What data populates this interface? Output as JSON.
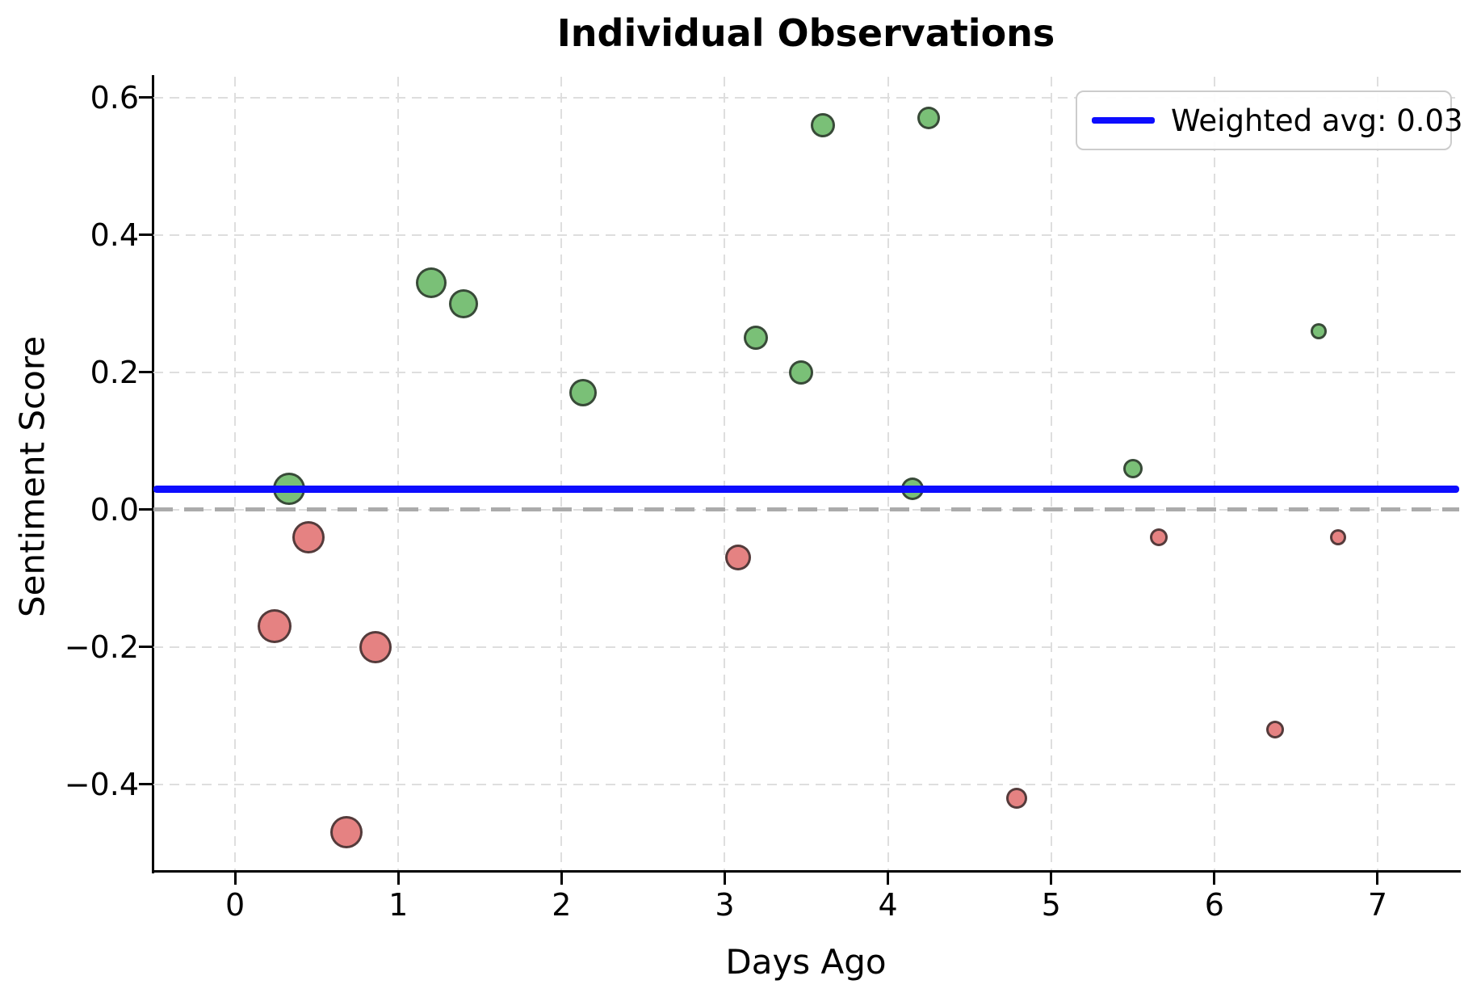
{
  "title": "Individual Observations",
  "axes": {
    "x": {
      "label": "Days Ago",
      "tick_labels": [
        "0",
        "1",
        "2",
        "3",
        "4",
        "5",
        "6",
        "7"
      ],
      "tick_values": [
        0,
        1,
        2,
        3,
        4,
        5,
        6,
        7
      ]
    },
    "y": {
      "label": "Sentiment Score",
      "tick_labels": [
        "0.6",
        "0.4",
        "0.2",
        "0.0",
        "−0.2",
        "−0.4"
      ],
      "tick_values": [
        0.6,
        0.4,
        0.2,
        0.0,
        -0.2,
        -0.4
      ]
    }
  },
  "legend": {
    "label": "Weighted avg: 0.03"
  },
  "colors": {
    "positive": "#7ac077",
    "negative": "#e58282",
    "avg_line": "#0d0dff",
    "zero_line": "#ababab",
    "grid": "#dedede",
    "point_edge": "rgba(35,35,35,0.75)",
    "legend_border": "#cccccc",
    "text": "#000000"
  },
  "chart_data": {
    "type": "scatter",
    "title": "Individual Observations",
    "xlabel": "Days Ago",
    "ylabel": "Sentiment Score",
    "xlim": [
      -0.5,
      7.5
    ],
    "ylim": [
      -0.525,
      0.63
    ],
    "x_ticks": [
      0,
      1,
      2,
      3,
      4,
      5,
      6,
      7
    ],
    "y_ticks": [
      0.6,
      0.4,
      0.2,
      0.0,
      -0.2,
      -0.4
    ],
    "grid": true,
    "grid_style": "dashed",
    "legend_position": "upper right",
    "legend_entries": [
      "Weighted avg: 0.03"
    ],
    "weighted_average": 0.03,
    "reference_lines": [
      {
        "name": "zero-line",
        "y": 0.0,
        "style": "dashed",
        "color_key": "zero_line"
      },
      {
        "name": "weighted-avg-line",
        "y": 0.03,
        "style": "solid",
        "color_key": "avg_line"
      }
    ],
    "series": [
      {
        "name": "positive-sentiment",
        "color_key": "positive",
        "points": [
          {
            "x": 0.33,
            "y": 0.03,
            "r": 20
          },
          {
            "x": 1.2,
            "y": 0.33,
            "r": 19
          },
          {
            "x": 1.4,
            "y": 0.3,
            "r": 18
          },
          {
            "x": 2.13,
            "y": 0.17,
            "r": 17
          },
          {
            "x": 3.19,
            "y": 0.25,
            "r": 15
          },
          {
            "x": 3.47,
            "y": 0.2,
            "r": 15
          },
          {
            "x": 3.6,
            "y": 0.56,
            "r": 15
          },
          {
            "x": 4.15,
            "y": 0.03,
            "r": 14
          },
          {
            "x": 4.25,
            "y": 0.57,
            "r": 14
          },
          {
            "x": 5.5,
            "y": 0.06,
            "r": 12
          },
          {
            "x": 6.64,
            "y": 0.26,
            "r": 10
          }
        ]
      },
      {
        "name": "negative-sentiment",
        "color_key": "negative",
        "points": [
          {
            "x": 0.24,
            "y": -0.17,
            "r": 21
          },
          {
            "x": 0.45,
            "y": -0.04,
            "r": 20
          },
          {
            "x": 0.68,
            "y": -0.47,
            "r": 20
          },
          {
            "x": 0.86,
            "y": -0.2,
            "r": 20
          },
          {
            "x": 3.08,
            "y": -0.07,
            "r": 16
          },
          {
            "x": 4.79,
            "y": -0.42,
            "r": 13
          },
          {
            "x": 5.66,
            "y": -0.04,
            "r": 11
          },
          {
            "x": 6.37,
            "y": -0.32,
            "r": 11
          },
          {
            "x": 6.76,
            "y": -0.04,
            "r": 10
          }
        ]
      }
    ]
  }
}
